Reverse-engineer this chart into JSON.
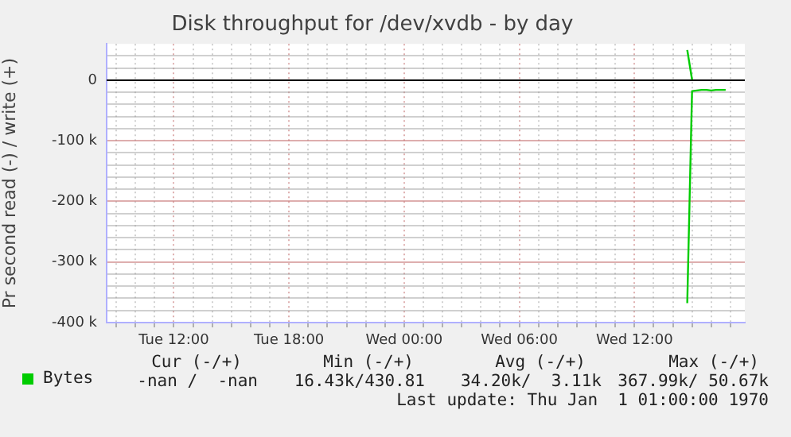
{
  "chart_data": {
    "type": "line",
    "title": "Disk throughput for /dev/xvdb - by day",
    "ylabel": "Pr second read (-) / write (+)",
    "categories": [
      null,
      null,
      null,
      null,
      null,
      null,
      null,
      null,
      null,
      null,
      null,
      null,
      null,
      null,
      "Tue 12:00",
      null,
      null,
      null,
      null,
      null,
      null,
      null,
      null,
      null,
      null,
      null,
      null,
      null,
      null,
      null,
      null,
      null,
      null,
      null,
      null,
      null,
      null,
      null,
      "Tue 18:00",
      null,
      null,
      null,
      null,
      null,
      null,
      null,
      null,
      null,
      null,
      null,
      null,
      null,
      null,
      null,
      null,
      null,
      null,
      null,
      null,
      null,
      null,
      null,
      "Wed 00:00",
      null,
      null,
      null,
      null,
      null,
      null,
      null,
      null,
      null,
      null,
      null,
      null,
      null,
      null,
      null,
      null,
      null,
      null,
      null,
      null,
      null,
      null,
      null,
      "Wed 06:00",
      null,
      null,
      null,
      null,
      null,
      null,
      null,
      null,
      null,
      null,
      null,
      null,
      null,
      null,
      null,
      null,
      null,
      null,
      null,
      null,
      null,
      null,
      null,
      "Wed 12:00",
      null,
      null,
      null,
      null,
      null,
      null,
      null,
      null,
      null,
      null,
      null,
      null,
      null,
      null,
      null,
      null,
      null,
      null,
      null,
      null,
      null,
      null,
      null
    ],
    "ylim": [
      -400000,
      60000
    ],
    "yticks": [
      {
        "value": -400000,
        "label": "-400 k"
      },
      {
        "value": -380000,
        "label": null
      },
      {
        "value": -360000,
        "label": null
      },
      {
        "value": -340000,
        "label": null
      },
      {
        "value": -320000,
        "label": null
      },
      {
        "value": -300000,
        "label": "-300 k"
      },
      {
        "value": -280000,
        "label": null
      },
      {
        "value": -260000,
        "label": null
      },
      {
        "value": -240000,
        "label": null
      },
      {
        "value": -220000,
        "label": null
      },
      {
        "value": -200000,
        "label": "-200 k"
      },
      {
        "value": -180000,
        "label": null
      },
      {
        "value": -160000,
        "label": null
      },
      {
        "value": -140000,
        "label": null
      },
      {
        "value": -120000,
        "label": null
      },
      {
        "value": -100000,
        "label": "-100 k"
      },
      {
        "value": -80000,
        "label": null
      },
      {
        "value": -60000,
        "label": null
      },
      {
        "value": -40000,
        "label": null
      },
      {
        "value": -20000,
        "label": null
      },
      {
        "value": 0,
        "label": "0"
      },
      {
        "value": 20000,
        "label": null
      },
      {
        "value": 40000,
        "label": null
      }
    ],
    "series": [
      {
        "name": "Bytes",
        "color": "#00cc00",
        "values": [
          null,
          null,
          null,
          null,
          null,
          null,
          null,
          null,
          null,
          null,
          null,
          null,
          null,
          null,
          null,
          null,
          null,
          null,
          null,
          null,
          null,
          null,
          null,
          null,
          null,
          null,
          null,
          null,
          null,
          null,
          null,
          null,
          null,
          null,
          null,
          null,
          null,
          null,
          null,
          null,
          null,
          null,
          null,
          null,
          null,
          null,
          null,
          null,
          null,
          null,
          null,
          null,
          null,
          null,
          null,
          null,
          null,
          null,
          null,
          null,
          null,
          null,
          null,
          null,
          null,
          null,
          null,
          null,
          null,
          null,
          null,
          null,
          null,
          null,
          null,
          null,
          null,
          null,
          null,
          null,
          null,
          null,
          null,
          null,
          null,
          null,
          null,
          null,
          null,
          null,
          null,
          null,
          null,
          null,
          null,
          null,
          null,
          null,
          null,
          null,
          null,
          null,
          null,
          null,
          null,
          null,
          null,
          null,
          null,
          null,
          null,
          null,
          null,
          null,
          null,
          null,
          null,
          null,
          null,
          null,
          null,
          50000,
          1000,
          null,
          null,
          null,
          null,
          null,
          null,
          null,
          null,
          null,
          null,
          null
        ]
      },
      {
        "color": "#00cc00",
        "values": [
          null,
          null,
          null,
          null,
          null,
          null,
          null,
          null,
          null,
          null,
          null,
          null,
          null,
          null,
          null,
          null,
          null,
          null,
          null,
          null,
          null,
          null,
          null,
          null,
          null,
          null,
          null,
          null,
          null,
          null,
          null,
          null,
          null,
          null,
          null,
          null,
          null,
          null,
          null,
          null,
          null,
          null,
          null,
          null,
          null,
          null,
          null,
          null,
          null,
          null,
          null,
          null,
          null,
          null,
          null,
          null,
          null,
          null,
          null,
          null,
          null,
          null,
          null,
          null,
          null,
          null,
          null,
          null,
          null,
          null,
          null,
          null,
          null,
          null,
          null,
          null,
          null,
          null,
          null,
          null,
          null,
          null,
          null,
          null,
          null,
          null,
          null,
          null,
          null,
          null,
          null,
          null,
          null,
          null,
          null,
          null,
          null,
          null,
          null,
          null,
          null,
          null,
          null,
          null,
          null,
          null,
          null,
          null,
          null,
          null,
          null,
          null,
          null,
          null,
          null,
          null,
          null,
          null,
          null,
          null,
          null,
          -368000,
          -18000,
          -17000,
          -16000,
          -16000,
          -17000,
          -16000,
          -16000,
          -16000,
          null,
          null,
          null,
          null
        ]
      }
    ],
    "ref_lines": [
      {
        "axis": "y",
        "value": 0,
        "color": "#000000"
      }
    ],
    "grid": true,
    "legend": "bottom",
    "marker": "none",
    "line_style": "solid",
    "annotations": [
      "Cur (-/+)",
      "Min (-/+)",
      "Avg (-/+)",
      "Max (-/+)",
      "-nan /  -nan",
      "16.43k/430.81",
      "34.20k/  3.11k",
      "367.99k/ 50.67k",
      "Last update: Thu Jan  1 01:00:00 1970"
    ]
  }
}
